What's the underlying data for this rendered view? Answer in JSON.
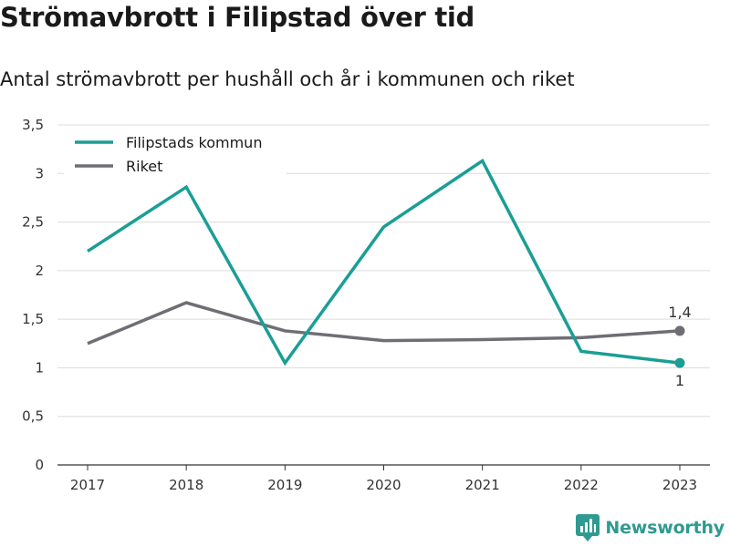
{
  "page": {
    "title": "Strömavbrott i Filipstad över tid",
    "subtitle": "Antal strömavbrott per hushåll och år i kommunen och riket"
  },
  "chart_data": {
    "type": "line",
    "title": "Strömavbrott i Filipstad över tid",
    "subtitle": "Antal strömavbrott per hushåll och år i kommunen och riket",
    "xlabel": "",
    "ylabel": "",
    "x": [
      "2017",
      "2018",
      "2019",
      "2020",
      "2021",
      "2022",
      "2023"
    ],
    "ylim": [
      0,
      3.5
    ],
    "yticks": [
      0,
      0.5,
      1,
      1.5,
      2,
      2.5,
      3,
      3.5
    ],
    "ytick_labels": [
      "0",
      "0,5",
      "1",
      "1,5",
      "2",
      "2,5",
      "3",
      "3,5"
    ],
    "grid": true,
    "legend": {
      "placement": "top-left"
    },
    "series": [
      {
        "name": "Filipstads kommun",
        "color": "#1a9e95",
        "values": [
          2.2,
          2.86,
          1.05,
          2.45,
          3.13,
          1.17,
          1.05
        ],
        "end_label": "1"
      },
      {
        "name": "Riket",
        "color": "#6e6e75",
        "values": [
          1.25,
          1.67,
          1.38,
          1.28,
          1.29,
          1.31,
          1.38
        ],
        "end_label": "1,4"
      }
    ]
  },
  "branding": {
    "logo_text": "Newsworthy",
    "icon": "newsworthy-logo-icon",
    "color": "#2f9a90"
  }
}
